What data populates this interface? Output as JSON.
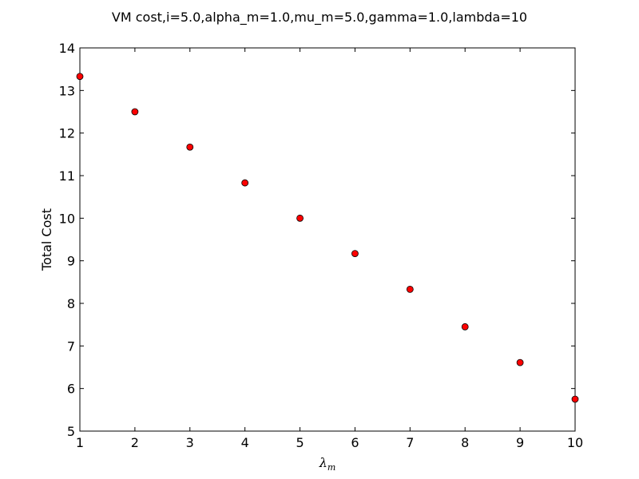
{
  "chart_data": {
    "type": "scatter",
    "title": "VM cost,i=5.0,alpha_m=1.0,mu_m=5.0,gamma=1.0,lambda=10",
    "xlabel": "λ",
    "xlabel_subscript": "m",
    "ylabel": "Total Cost",
    "xlim": [
      1,
      10
    ],
    "ylim": [
      5,
      14
    ],
    "xticks": [
      1,
      2,
      3,
      4,
      5,
      6,
      7,
      8,
      9,
      10
    ],
    "yticks": [
      5,
      6,
      7,
      8,
      9,
      10,
      11,
      12,
      13,
      14
    ],
    "grid": false,
    "marker_color": "#ff0000",
    "marker_edge_color": "#000000",
    "series": [
      {
        "x": [
          1,
          2,
          3,
          4,
          5,
          6,
          7,
          8,
          9,
          10
        ],
        "y": [
          13.33,
          12.5,
          11.67,
          10.83,
          10.0,
          9.17,
          8.33,
          7.45,
          6.61,
          5.75
        ]
      }
    ]
  }
}
